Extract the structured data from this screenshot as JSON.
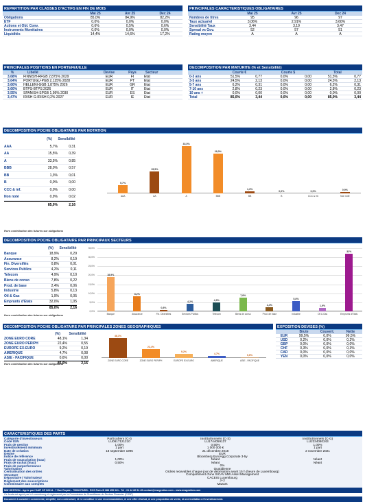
{
  "repartition": {
    "title": "REPARTITION PAR CLASSES D'ACTIFS EN FIN DE MOIS",
    "cols": [
      "Mai 25",
      "Avr 25",
      "Dec 24"
    ],
    "rows": [
      [
        "Obligations",
        "85,0%",
        "84,9%",
        "82,2%"
      ],
      [
        "ETF",
        "0,0%",
        "0,0%",
        "0,0%"
      ],
      [
        "Actions et Obl. Conv.",
        "0,6%",
        "0,5%",
        "0,6%"
      ],
      [
        "Instruments Monétaires",
        "0,0%",
        "0,0%",
        "0,0%"
      ],
      [
        "Liquidités",
        "14,4%",
        "14,6%",
        "17,2%"
      ]
    ]
  },
  "caracteristiques": {
    "title": "PRINCIPALES CARACTERISTIQUES OBLIGATAIRES",
    "cols": [
      "Mai 25",
      "Avr 25",
      "Dec 24"
    ],
    "rows": [
      [
        "Nombres de titres",
        "95",
        "96",
        "97"
      ],
      [
        "Taux actuariel",
        "3,06%",
        "2,91%",
        "3,60%"
      ],
      [
        "Sensibilité Taux",
        "3,44",
        "3,19",
        "3,47"
      ],
      [
        "Spread vs Gov.",
        "52",
        "57",
        "51"
      ],
      [
        "Rating moyen",
        "A",
        "A",
        "A"
      ]
    ]
  },
  "positions": {
    "title": "PRINCIPALES POSITIONS EN PORTEFEUILLE",
    "cols": [
      "%",
      "Libellé",
      "Devise",
      "Pays",
      "Secteur"
    ],
    "rows": [
      [
        "3,68%",
        "FINNISH-RFGB 2,875% 2029",
        "EUR",
        "FI",
        "Etat"
      ],
      [
        "3,64%",
        "PORTUGU-PGB 2,125% 2028",
        "EUR",
        "PT",
        "Etat"
      ],
      [
        "3,60%",
        "HELLENI-GGB 1,875% 2026",
        "EUR",
        "GR",
        "Etat"
      ],
      [
        "3,60%",
        "BTPS-BTPS 2026",
        "EUR",
        "IT",
        "Etat"
      ],
      [
        "3,55%",
        "SPANISH-SPGB 1,95% 2030",
        "EUR",
        "ES",
        "Etat"
      ],
      [
        "3,47%",
        "IRISH G-IRISH 0,2% 2027",
        "EUR",
        "IE",
        "Etat"
      ]
    ]
  },
  "maturite": {
    "title": "DECOMPOSITION PAR MATURITE  (% et Sensibilité)",
    "groups": [
      "Courte €",
      "Courte $",
      "Total"
    ],
    "rows": [
      [
        "0-3 ans",
        "51,5%",
        "0,77",
        "0,0%",
        "0,00",
        "51,5%",
        "0,77"
      ],
      [
        "3-5 ans",
        "24,5%",
        "2,13",
        "0,0%",
        "0,00",
        "24,5%",
        "2,13"
      ],
      [
        "5-7 ans",
        "6,2%",
        "0,31",
        "0,0%",
        "0,00",
        "6,2%",
        "0,31"
      ],
      [
        "7-10 ans",
        "2,8%",
        "0,23",
        "0,0%",
        "0,00",
        "2,8%",
        "0,23"
      ],
      [
        "10 ans +",
        "0,0%",
        "0,00",
        "0,0%",
        "0,00",
        "0,0%",
        "0,00"
      ],
      [
        "Total",
        "85,0%",
        "3,44",
        "0,0%",
        "0,00",
        "85,0%",
        "3,44"
      ]
    ]
  },
  "notation": {
    "title": "DECOMPOSITION POCHE OBLIGATAIRE PAR NOTATION",
    "cols": [
      "(%)",
      "Sensibilité"
    ],
    "rows": [
      [
        "AAA",
        "5,7%",
        "0,31"
      ],
      [
        "AA",
        "15,5%",
        "0,39"
      ],
      [
        "A",
        "33,5%",
        "0,85"
      ],
      [
        "BBB",
        "28,0%",
        "0,57"
      ],
      [
        "BB",
        "1,3%",
        "0,01"
      ],
      [
        "B",
        "0,0%",
        "0,00"
      ],
      [
        "CCC & inf.",
        "0,0%",
        "0,00"
      ],
      [
        "Non noté",
        "0,9%",
        "0,02"
      ]
    ],
    "total": [
      "85,0%",
      "2,16"
    ],
    "note": "Hors contribution des futures sur obligations"
  },
  "secteurs": {
    "title": "DECOMPOSITION POCHE OBLIGATAIRE PAR PRINCIPAUX SECTEURS",
    "cols": [
      "(%)",
      "Sensibilité"
    ],
    "rows": [
      [
        "Banque",
        "18,9%",
        "0,29"
      ],
      [
        "Assurance",
        "8,2%",
        "0,19"
      ],
      [
        "Fin. Diversifiés",
        "0,8%",
        "0,01"
      ],
      [
        "Services Publics",
        "4,2%",
        "0,11"
      ],
      [
        "Telecom",
        "4,9%",
        "0,10"
      ],
      [
        "Biens de conso",
        "7,8%",
        "0,22"
      ],
      [
        "Prod. de base",
        "2,4%",
        "0,06"
      ],
      [
        "Industrie",
        "5,8%",
        "0,13"
      ],
      [
        "Oil & Gas",
        "1,9%",
        "0,05"
      ],
      [
        "Emprunts d'Etats",
        "32,0%",
        "1,05"
      ]
    ],
    "total": [
      "85,0%",
      "2,16"
    ],
    "note": "Hors contribution des futures sur obligations"
  },
  "zones": {
    "title": "DECOMPOSITION POCHE OBLIGATAIRE PAR PRINCIPALES ZONES GEOGRAPHIQUES",
    "cols": [
      "(%)",
      "Sensibilité"
    ],
    "rows": [
      [
        "ZONE EURO CORE",
        "48,1%",
        "1,34"
      ],
      [
        "ZONE EURO PERIPH",
        "22,4%",
        "0,55"
      ],
      [
        "EUROPE EX-EURO",
        "9,2%",
        "0,19"
      ],
      [
        "AMERIQUE",
        "4,7%",
        "0,08"
      ],
      [
        "ASIE - PACIFIQUE",
        "0,6%",
        "0,00"
      ]
    ],
    "total": [
      "85,0%",
      "2,16"
    ],
    "note": "Hors contribution des futures sur obligations"
  },
  "devises": {
    "title": "EXPOSITION DEVISES (%)",
    "cols": [
      "Brute",
      "Couvert.",
      "Nette"
    ],
    "rows": [
      [
        "EUR",
        "99,5%",
        "0,0%",
        "99,5%"
      ],
      [
        "USD",
        "0,2%",
        "0,0%",
        "0,2%"
      ],
      [
        "GBP",
        "0,0%",
        "0,0%",
        "0,0%"
      ],
      [
        "CHF",
        "0,3%",
        "0,0%",
        "0,3%"
      ],
      [
        "CAD",
        "0,0%",
        "0,0%",
        "0,0%"
      ],
      [
        "YEN",
        "0,0%",
        "0,0%",
        "0,0%"
      ]
    ]
  },
  "parts": {
    "title": "CARACTERISTIQUES DES PARTS",
    "labels": [
      "Catégorie d'investisseurs",
      "Code ISIN",
      "Frais de gestion",
      "Investissement minimum",
      "Date de création",
      "Devise",
      "Indice de référence",
      "Frais de souscription (max)",
      "Frais de rachat (max)",
      "Frais de surperformance",
      "Valorisation",
      "Centralisation des ordres",
      "Structure",
      "Dépositaire / Valorisateur",
      "Règlement des souscriptions",
      "Commissaire aux comptes"
    ],
    "cols": [
      "Particuliers (C-I)",
      "Institutionnels (C-S)",
      "Institutionnels (C-G)"
    ],
    "c1": [
      "LU0617121210",
      "1,00%",
      "1 part",
      "18 septembre 1995"
    ],
    "c2": [
      "LU1744059137",
      "0,50%",
      "1 000 000 €",
      "21 décembre 2018"
    ],
    "c3": [
      "LU2334080343",
      "1,00%",
      "1 part",
      "2 novembre 2021"
    ],
    "devise": "EUR",
    "indice": "Bloomberg EuroAgg Corporate 3-5y",
    "souscr": [
      "1,00%",
      "Néant",
      "Néant"
    ],
    "rachat": [
      "0,50%",
      "Néant",
      "Néant"
    ],
    "surperf": "0%",
    "valo": "Quotidienne",
    "centr": "Ordres recevables chaque jour de valorisation avant 15 h (heure de Luxembourg)",
    "struct": "Compartiment d'une SICAV MW Asset Management",
    "depos": "CACEIS Luxembourg",
    "regl": "J+2",
    "comm": "Mazars"
  },
  "footer": [
    "MW GESTION - Agrée par l'AMF GP 92014 - 7 Rue Royale - 75008 PARIS - RCS Paris B 388 455 321 - Tel : 01 42 86 54 45 contact@mwgestion.com - www.mwgestion.com",
    "Ce fonds est agréé par le Luxembourg et réglementé par la Commission de Surveillance du Secteur Financier (CSSF)",
    "Document à caractère commercial, simplifié, non contractuel, et ne constitue ni une recommandation, ni une offre d'achat, ni une proposition de vente, ni une incitation à l'investissement."
  ],
  "chart_data": [
    {
      "type": "bar",
      "categories": [
        "AAA",
        "AA",
        "A",
        "BBB",
        "BB",
        "B",
        "CCC & inf.",
        "Non noté"
      ],
      "values": [
        5.7,
        15.5,
        33.5,
        28.0,
        1.3,
        0.0,
        0.0,
        0.9
      ],
      "labels": [
        "5,7%",
        "15,5%",
        "33,5%",
        "28,0%",
        "1,3%",
        "0,0%",
        "0,0%",
        "0,9%"
      ],
      "colors": [
        "#f28c28",
        "#9c4a12",
        "#f28c28",
        "#f28c28",
        "#9c4a12",
        "#9c4a12",
        "#f28c28",
        "#9c4a12"
      ],
      "ylim": [
        0,
        35
      ]
    },
    {
      "type": "bar",
      "categories": [
        "Banque",
        "Assurance",
        "Fin. Diversifiés",
        "Services Publics",
        "Telecom",
        "Biens de conso",
        "Prod. de base",
        "Industrie",
        "Oil & Gas",
        "Emprunts d'Etats"
      ],
      "values": [
        18.9,
        8.2,
        0.8,
        4.2,
        4.9,
        7.8,
        2.4,
        5.8,
        1.9,
        32.0
      ],
      "labels": [
        "18,9%",
        "8,2%",
        "0,8%",
        "4,2%",
        "4,9%",
        "7,8%",
        "2,4%",
        "5,8%",
        "1,9%",
        "32%"
      ],
      "colors": [
        "#f6a55a",
        "#e97d1b",
        "#9c4a12",
        "#2d5d9c",
        "#1d4e55",
        "#7bb84c",
        "#8a5a1f",
        "#3c5cc4",
        "#b06bc4",
        "#9d1a8f"
      ],
      "ylim": [
        0,
        35
      ],
      "yticks": [
        "0,0%",
        "5,0%",
        "10,0%",
        "15,0%",
        "20,0%",
        "25,0%",
        "30,0%",
        "35,0%"
      ]
    },
    {
      "type": "bar",
      "categories": [
        "ZONE EURO CORE",
        "ZONE EURO PERIPH",
        "EUROPE EX-EURO",
        "AMERIQUE",
        "ASIE - PACIFIQUE"
      ],
      "values": [
        48.1,
        22.4,
        9.2,
        4.7,
        0.6
      ],
      "labels": [
        "48,1%",
        "22,4%",
        "9,2%",
        "4,7%",
        "0,6%"
      ],
      "colors": [
        "#9c4a12",
        "#f28c28",
        "#f6b05a",
        "#3c5cc4",
        "#c9a27a"
      ],
      "ylim": [
        0,
        50
      ]
    }
  ]
}
